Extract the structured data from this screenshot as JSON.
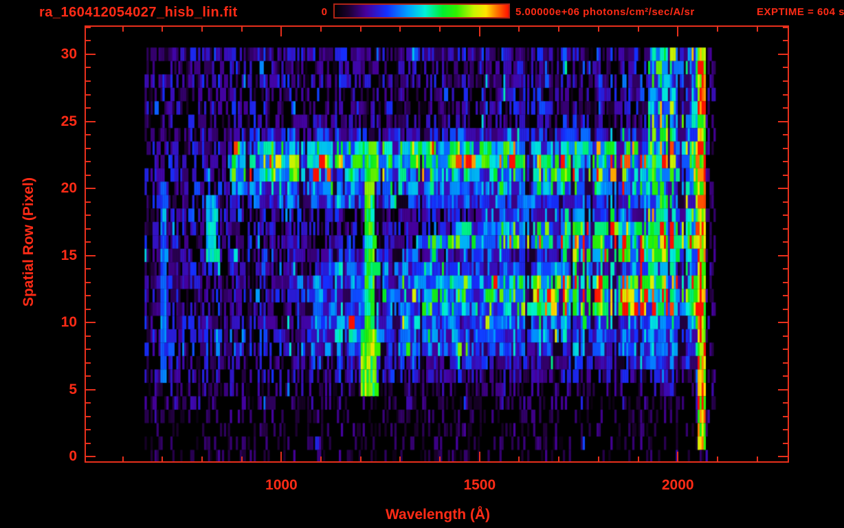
{
  "header": {
    "title": "ra_160412054027_hisb_lin.fit",
    "exptime_label": "EXPTIME = 604 s",
    "colorbar": {
      "min_label": "0",
      "max_label": "5.00000e+06 photons/cm²/sec/A/sr"
    }
  },
  "chart_data": {
    "type": "heatmap",
    "title": "ra_160412054027_hisb_lin.fit",
    "xlabel": "Wavelength (Å)",
    "ylabel": "Spatial Row (Pixel)",
    "xlim": [
      507,
      2277
    ],
    "ylim": [
      -0.35,
      32.05
    ],
    "x_major_ticks": [
      1000,
      1500,
      2000
    ],
    "x_minor_tick_interval_angstrom": 100,
    "y_major_ticks": [
      0,
      5,
      10,
      15,
      20,
      25,
      30
    ],
    "y_minor_tick_interval": 1,
    "grid": false,
    "colorbar_min": 0,
    "colorbar_max_label": "5.00000e+06 photons/cm²/sec/A/sr",
    "colorbar_units": "photons/cm²/sec/A/sr",
    "exposure_time_seconds": 604,
    "colormap_stops": [
      [
        0,
        "#000000"
      ],
      [
        0.08,
        "#1c0030"
      ],
      [
        0.18,
        "#46009c"
      ],
      [
        0.3,
        "#1430ff"
      ],
      [
        0.42,
        "#00a0ff"
      ],
      [
        0.52,
        "#00f0d8"
      ],
      [
        0.62,
        "#00ee30"
      ],
      [
        0.7,
        "#30f000"
      ],
      [
        0.8,
        "#c8f400"
      ],
      [
        0.87,
        "#ffe400"
      ],
      [
        0.93,
        "#ff7800"
      ],
      [
        1.0,
        "#ff1000"
      ]
    ],
    "intensity_scale": "levels 0-10 map linearly onto colormap; 10 = 5.00000e+06 photons/cm²/sec/A/sr",
    "data_extent": {
      "wavelength_angstrom": [
        655,
        2095
      ],
      "spatial_rows": [
        0,
        30
      ]
    },
    "row_profiles": [
      {
        "row": 30,
        "segments": [
          [
            655,
            1500,
            2.0
          ],
          [
            1500,
            1925,
            2.2
          ],
          [
            1925,
            2062,
            4.8
          ]
        ]
      },
      {
        "row": 29,
        "segments": [
          [
            655,
            1500,
            1.3
          ],
          [
            1500,
            1925,
            1.8
          ],
          [
            1925,
            2062,
            4.2
          ]
        ]
      },
      {
        "row": 28,
        "segments": [
          [
            655,
            1500,
            1.5
          ],
          [
            1500,
            1925,
            1.9
          ],
          [
            1925,
            2062,
            4.4
          ]
        ]
      },
      {
        "row": 27,
        "segments": [
          [
            655,
            1500,
            1.2
          ],
          [
            1500,
            1925,
            1.7
          ],
          [
            1925,
            2062,
            4.0
          ]
        ]
      },
      {
        "row": 26,
        "segments": [
          [
            655,
            1500,
            1.3
          ],
          [
            1500,
            1925,
            1.8
          ],
          [
            1925,
            2062,
            4.2
          ]
        ]
      },
      {
        "row": 25,
        "segments": [
          [
            655,
            1500,
            1.2
          ],
          [
            1500,
            1925,
            1.7
          ],
          [
            1925,
            2062,
            4.2
          ]
        ]
      },
      {
        "row": 24,
        "segments": [
          [
            655,
            900,
            1.4
          ],
          [
            900,
            1925,
            2.6
          ],
          [
            1925,
            2062,
            4.6
          ]
        ]
      },
      {
        "row": 23,
        "segments": [
          [
            655,
            880,
            1.4
          ],
          [
            880,
            1200,
            4.6
          ],
          [
            1200,
            1925,
            5.6
          ],
          [
            1925,
            2062,
            6.0
          ]
        ]
      },
      {
        "row": 22,
        "segments": [
          [
            655,
            862,
            1.5
          ],
          [
            862,
            1000,
            5.2
          ],
          [
            1000,
            1900,
            6.6
          ],
          [
            1900,
            2062,
            7.0
          ]
        ]
      },
      {
        "row": 21,
        "segments": [
          [
            655,
            868,
            1.5
          ],
          [
            868,
            1500,
            4.9
          ],
          [
            1500,
            2062,
            5.4
          ]
        ]
      },
      {
        "row": 20,
        "segments": [
          [
            655,
            875,
            1.6
          ],
          [
            875,
            1500,
            3.7
          ],
          [
            1500,
            2062,
            4.3
          ]
        ]
      },
      {
        "row": 19,
        "segments": [
          [
            655,
            926,
            1.6
          ],
          [
            926,
            1900,
            3.1
          ],
          [
            1900,
            2062,
            4.6
          ]
        ]
      },
      {
        "row": 18,
        "segments": [
          [
            655,
            1500,
            1.8
          ],
          [
            1500,
            1925,
            3.4
          ],
          [
            1925,
            2062,
            5.6
          ]
        ]
      },
      {
        "row": 17,
        "segments": [
          [
            655,
            1440,
            1.8
          ],
          [
            1440,
            1660,
            4.8
          ],
          [
            1660,
            1930,
            6.4
          ],
          [
            1930,
            2062,
            7.0
          ]
        ]
      },
      {
        "row": 16,
        "segments": [
          [
            655,
            1340,
            1.8
          ],
          [
            1340,
            1560,
            5.2
          ],
          [
            1560,
            1935,
            7.0
          ],
          [
            1935,
            2048,
            8.6
          ],
          [
            2048,
            2062,
            7.2
          ]
        ]
      },
      {
        "row": 15,
        "segments": [
          [
            655,
            1100,
            1.9
          ],
          [
            1100,
            1730,
            2.8
          ],
          [
            1730,
            2062,
            6.3
          ]
        ]
      },
      {
        "row": 14,
        "segments": [
          [
            655,
            1100,
            2.0
          ],
          [
            1100,
            1900,
            3.4
          ],
          [
            1900,
            2062,
            4.2
          ]
        ]
      },
      {
        "row": 13,
        "segments": [
          [
            655,
            1040,
            2.0
          ],
          [
            1040,
            1340,
            3.3
          ],
          [
            1340,
            1600,
            5.0
          ],
          [
            1600,
            1840,
            6.6
          ],
          [
            1840,
            2062,
            7.8
          ]
        ]
      },
      {
        "row": 12,
        "segments": [
          [
            655,
            1040,
            2.0
          ],
          [
            1040,
            1340,
            3.4
          ],
          [
            1340,
            1600,
            5.2
          ],
          [
            1600,
            1840,
            6.6
          ],
          [
            1840,
            2062,
            7.8
          ]
        ]
      },
      {
        "row": 11,
        "segments": [
          [
            655,
            1040,
            2.0
          ],
          [
            1040,
            1340,
            3.2
          ],
          [
            1340,
            1600,
            5.0
          ],
          [
            1600,
            1840,
            6.4
          ],
          [
            1840,
            2062,
            7.6
          ]
        ]
      },
      {
        "row": 10,
        "segments": [
          [
            655,
            1060,
            2.2
          ],
          [
            1060,
            1900,
            3.8
          ],
          [
            1900,
            2062,
            4.4
          ]
        ]
      },
      {
        "row": 9,
        "segments": [
          [
            655,
            1060,
            1.9
          ],
          [
            1060,
            1900,
            3.5
          ],
          [
            1900,
            2062,
            4.0
          ]
        ]
      },
      {
        "row": 8,
        "segments": [
          [
            655,
            1050,
            1.6
          ],
          [
            1050,
            1900,
            3.2
          ],
          [
            1900,
            2062,
            3.6
          ]
        ]
      },
      {
        "row": 7,
        "segments": [
          [
            655,
            1050,
            1.3
          ],
          [
            1050,
            1900,
            2.4
          ],
          [
            1900,
            2062,
            2.8
          ]
        ]
      },
      {
        "row": 6,
        "segments": [
          [
            655,
            1050,
            1.2
          ],
          [
            1050,
            1900,
            2.0
          ],
          [
            1900,
            2062,
            2.4
          ]
        ]
      },
      {
        "row": 5,
        "segments": [
          [
            655,
            2062,
            1.0
          ]
        ]
      },
      {
        "row": 4,
        "segments": [
          [
            655,
            2062,
            0.8
          ]
        ]
      },
      {
        "row": 3,
        "segments": [
          [
            655,
            2062,
            0.6
          ]
        ]
      },
      {
        "row": 2,
        "segments": [
          [
            655,
            2062,
            0.4
          ]
        ]
      },
      {
        "row": 1,
        "segments": [
          [
            655,
            2062,
            0.5
          ]
        ]
      },
      {
        "row": 0,
        "segments": [
          [
            655,
            2062,
            0.4
          ]
        ]
      }
    ],
    "features": [
      {
        "name": "lyman-alpha-emission-column",
        "wavelength": [
          1206,
          1232
        ],
        "rows": [
          9,
          23
        ],
        "level": 6.4
      },
      {
        "name": "lyman-alpha-bright-base",
        "wavelength": [
          1196,
          1240
        ],
        "rows": [
          5,
          9
        ],
        "level": 7.2
      },
      {
        "name": "short-wavelength-edge-line",
        "wavelength": [
          693,
          706
        ],
        "rows": [
          6,
          20
        ],
        "level": 3.6
      },
      {
        "name": "slit-edge-hook",
        "wavelength": [
          806,
          832
        ],
        "rows": [
          15,
          19
        ],
        "level": 4.7
      },
      {
        "name": "long-wavelength-edge-column",
        "wavelength": [
          2050,
          2068
        ],
        "rows": [
          1,
          30
        ],
        "level": 8.6
      },
      {
        "name": "beyond-edge-sparse-columns",
        "wavelength": [
          2068,
          2095
        ],
        "rows": [
          0,
          30
        ],
        "level": 0.9
      }
    ],
    "noise_seed": 20160412
  },
  "colors": {
    "background": "#000000",
    "text_red": "#ff2b16",
    "axis_red": "#e8301c",
    "colorbar_border": "#b02316"
  }
}
